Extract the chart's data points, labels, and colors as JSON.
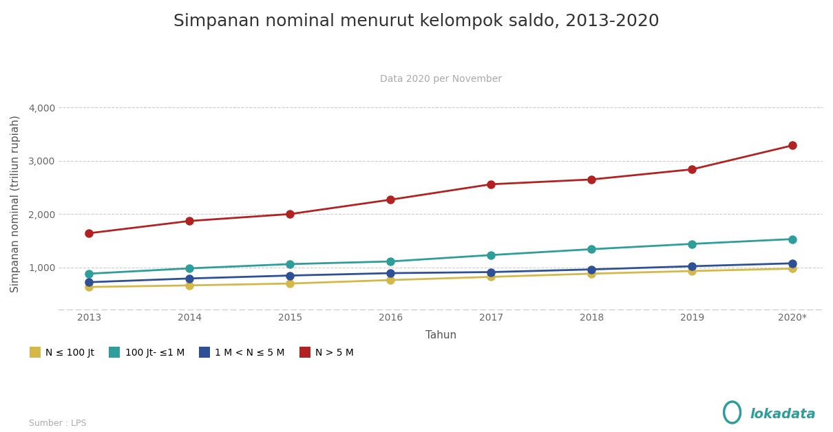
{
  "title": "Simpanan nominal menurut kelompok saldo, 2013-2020",
  "subtitle": "Data 2020 per November",
  "xlabel": "Tahun",
  "ylabel": "Simpanan nominal (triliun rupiah)",
  "source": "Sumber : LPS",
  "years": [
    2013,
    2014,
    2015,
    2016,
    2017,
    2018,
    2019,
    2020
  ],
  "year_labels": [
    "2013",
    "2014",
    "2015",
    "2016",
    "2017",
    "2018",
    "2019",
    "2020*"
  ],
  "series": [
    {
      "label": "N ≤ 100 Jt",
      "color": "#D4B84A",
      "data": [
        630,
        660,
        695,
        760,
        820,
        880,
        930,
        975
      ]
    },
    {
      "label": "100 Jt- ≤1 M",
      "color": "#2E9E9A",
      "data": [
        880,
        980,
        1060,
        1110,
        1230,
        1340,
        1440,
        1530
      ]
    },
    {
      "label": "1 M < N ≤ 5 M",
      "color": "#2E5096",
      "data": [
        720,
        790,
        845,
        890,
        910,
        960,
        1020,
        1075
      ]
    },
    {
      "label": "N > 5 M",
      "color": "#B22222",
      "data": [
        1640,
        1870,
        2000,
        2270,
        2560,
        2650,
        2840,
        3290
      ]
    }
  ],
  "ylim": [
    200,
    4200
  ],
  "yticks": [
    1000,
    2000,
    3000,
    4000
  ],
  "ytick_labels": [
    "1,000",
    "2,000",
    "3,000",
    "4,000"
  ],
  "background_color": "#ffffff",
  "grid_color": "#cccccc",
  "title_fontsize": 18,
  "subtitle_fontsize": 10,
  "axis_label_fontsize": 11,
  "tick_fontsize": 10,
  "legend_fontsize": 10,
  "source_fontsize": 9,
  "marker_size": 8,
  "line_width": 2.0
}
